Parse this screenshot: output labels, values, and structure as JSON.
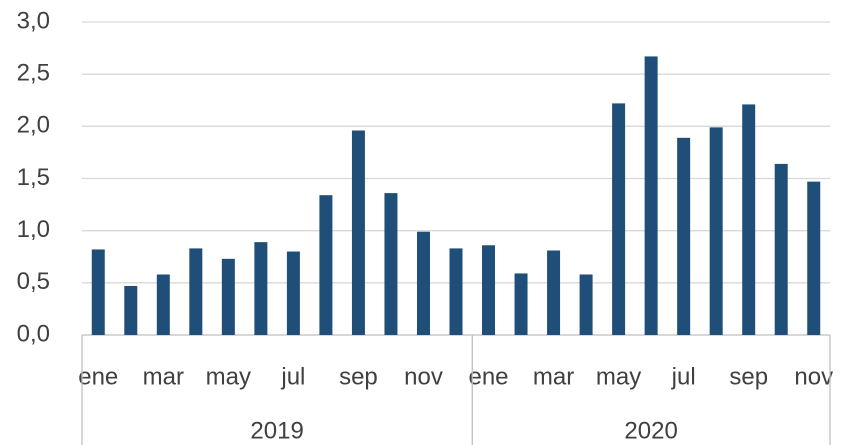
{
  "chart_data": {
    "type": "bar",
    "categories": [
      "ene",
      null,
      "mar",
      null,
      "may",
      null,
      "jul",
      null,
      "sep",
      null,
      "nov",
      null,
      "ene",
      null,
      "mar",
      null,
      "may",
      null,
      "jul",
      null,
      "sep",
      null,
      "nov"
    ],
    "groups": [
      {
        "label": "2019",
        "span": [
          0,
          11
        ]
      },
      {
        "label": "2020",
        "span": [
          12,
          22
        ]
      }
    ],
    "values": [
      0.82,
      0.47,
      0.58,
      0.83,
      0.73,
      0.89,
      0.8,
      1.34,
      1.96,
      1.36,
      0.99,
      0.83,
      0.86,
      0.59,
      0.81,
      0.58,
      2.22,
      2.67,
      1.89,
      1.99,
      2.21,
      1.64,
      1.47
    ],
    "color": "#1f4e79",
    "ylim": [
      0,
      3
    ],
    "yticks": [
      {
        "value": 0,
        "label": "0,0"
      },
      {
        "value": 0.5,
        "label": "0,5"
      },
      {
        "value": 1,
        "label": "1,0"
      },
      {
        "value": 1.5,
        "label": "1,5"
      },
      {
        "value": 2,
        "label": "2,0"
      },
      {
        "value": 2.5,
        "label": "2,5"
      },
      {
        "value": 3,
        "label": "3,0"
      }
    ],
    "grid": true
  }
}
